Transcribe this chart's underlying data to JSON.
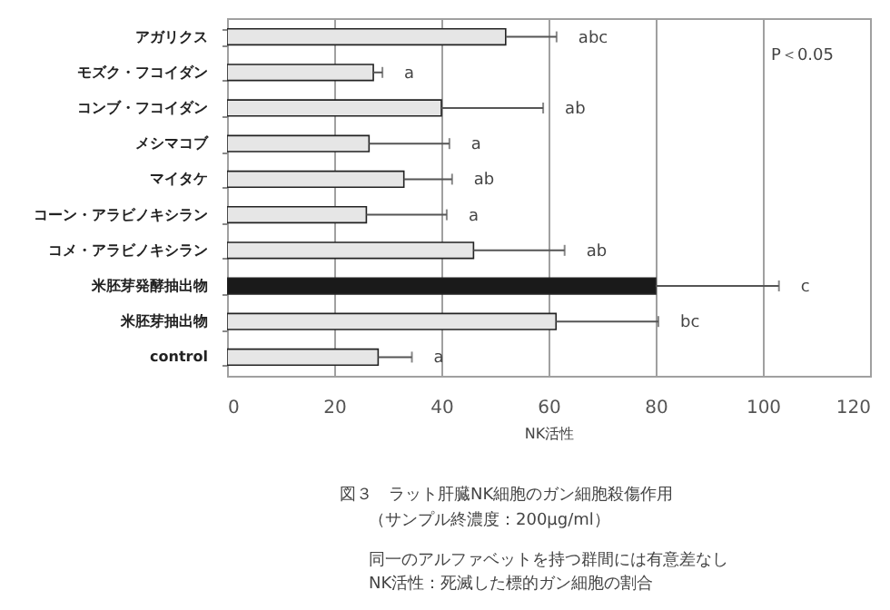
{
  "chart_data": {
    "type": "bar",
    "orientation": "horizontal",
    "title": "図３　ラット肝臓NK細胞のガン細胞殺傷作用",
    "subtitle": "（サンプル終濃度：200μg/ml）",
    "xlabel": "NK活性",
    "categories": [
      "アガリクス",
      "モズク・フコイダン",
      "コンブ・フコイダン",
      "メシマコブ",
      "マイタケ",
      "コーン・アラビノキシラン",
      "コメ・アラビノキシラン",
      "米胚芽発酵抽出物",
      "米胚芽抽出物",
      "control"
    ],
    "values": [
      52,
      27.3,
      40,
      26.5,
      33,
      26,
      46,
      80,
      61.4,
      28.2
    ],
    "errors": [
      [
        52,
        61.5
      ],
      [
        27.3,
        29
      ],
      [
        40,
        59
      ],
      [
        26.5,
        41.5
      ],
      [
        33,
        42
      ],
      [
        26,
        41
      ],
      [
        46,
        63
      ],
      [
        80,
        103
      ],
      [
        61.4,
        80.5
      ],
      [
        28.2,
        34.5
      ]
    ],
    "colors": [
      "#e6e6e6",
      "#e6e6e6",
      "#e6e6e6",
      "#e6e6e6",
      "#e6e6e6",
      "#e6e6e6",
      "#e6e6e6",
      "#1a1a1a",
      "#e6e6e6",
      "#e6e6e6"
    ],
    "xlim": [
      0,
      120
    ],
    "xticks": [
      0,
      20,
      40,
      60,
      80,
      100,
      120
    ],
    "grid": "x",
    "annotations": [
      "P＜0.05",
      "abc",
      "a",
      "ab",
      "a",
      "ab",
      "a",
      "ab",
      "c",
      "bc",
      "a",
      "同一のアルファベットを持つ群間には有意差なし",
      "NK活性：死滅した標的ガン細胞の割合"
    ]
  }
}
